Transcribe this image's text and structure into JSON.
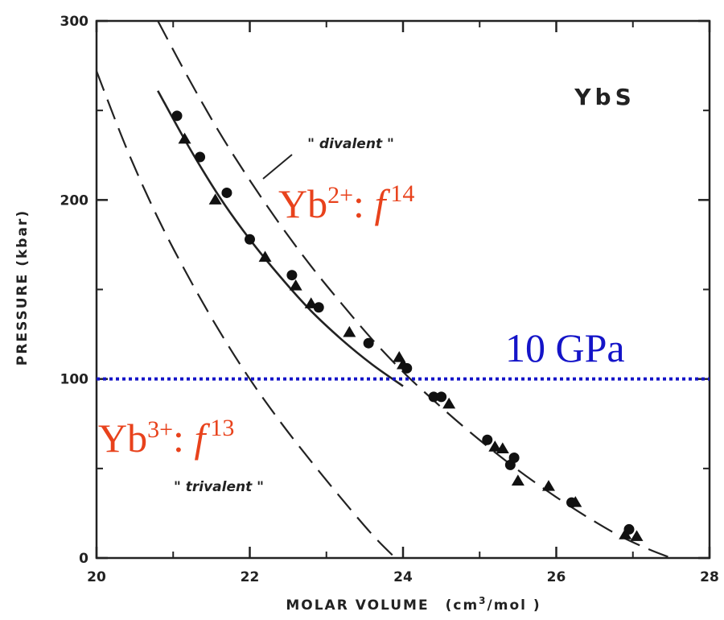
{
  "chart_data": {
    "type": "line",
    "title": "YbS",
    "xlabel_main": "MOLAR VOLUME",
    "xlabel_unit_open": "(cm",
    "xlabel_unit_sup": "3",
    "xlabel_unit_close": "/mol )",
    "ylabel": "PRESSURE  (kbar)",
    "xlim": [
      20,
      28
    ],
    "ylim": [
      0,
      300
    ],
    "x_ticks": [
      "20",
      "22",
      "24",
      "26",
      "28"
    ],
    "y_ticks": [
      "0",
      "100",
      "200",
      "300"
    ],
    "series": [
      {
        "name": "\"divalent\"",
        "style": "dashed",
        "x": [
          20.8,
          21.2,
          21.6,
          22.0,
          22.4,
          22.8,
          23.2,
          23.6,
          24.0,
          24.4,
          24.8,
          25.2,
          25.6,
          26.0,
          26.4,
          26.8,
          27.2,
          27.5
        ],
        "y": [
          300,
          268,
          238,
          211,
          186,
          163,
          142,
          122,
          104,
          88,
          73,
          59,
          46,
          34,
          23,
          13,
          5,
          0
        ]
      },
      {
        "name": "fit",
        "style": "solid",
        "x": [
          20.8,
          21.2,
          21.6,
          22.0,
          22.4,
          22.8,
          23.2,
          23.6,
          24.0
        ],
        "y": [
          261,
          230,
          202,
          178,
          157,
          138,
          122,
          108,
          96
        ]
      },
      {
        "name": "\"trivalent\"",
        "style": "dashed",
        "x": [
          20.0,
          20.4,
          20.8,
          21.2,
          21.6,
          22.0,
          22.4,
          22.8,
          23.2,
          23.6,
          23.9
        ],
        "y": [
          272,
          228,
          190,
          157,
          127,
          100,
          76,
          54,
          33,
          13,
          0
        ]
      },
      {
        "name": "circles",
        "marker": "circle",
        "x": [
          21.05,
          21.35,
          21.7,
          22.0,
          22.55,
          22.9,
          23.55,
          24.05,
          24.4,
          24.5,
          25.1,
          25.4,
          25.45,
          26.2,
          26.95
        ],
        "y": [
          247,
          224,
          204,
          178,
          158,
          140,
          120,
          106,
          90,
          90,
          66,
          52,
          56,
          31,
          16
        ]
      },
      {
        "name": "triangles",
        "marker": "triangle",
        "x": [
          21.15,
          21.55,
          22.2,
          22.6,
          22.8,
          23.3,
          23.95,
          24.0,
          24.6,
          25.2,
          25.3,
          25.5,
          25.9,
          26.25,
          26.9,
          27.05
        ],
        "y": [
          234,
          200,
          168,
          152,
          142,
          126,
          112,
          108,
          86,
          62,
          61,
          43,
          40,
          31,
          13,
          12
        ]
      },
      {
        "name": "10 GPa",
        "style": "dotted",
        "x": [
          20,
          28
        ],
        "y": [
          100,
          100
        ]
      }
    ],
    "labels": {
      "divalent": "\" divalent \"",
      "trivalent": "\" trivalent \""
    },
    "annotations": {
      "yb2_base": "Yb",
      "yb2_sup": "2+",
      "yb2_colon": ": ",
      "yb2_f": "f",
      "yb2_exp": "14",
      "yb3_base": "Yb",
      "yb3_sup": "3+",
      "yb3_colon": ": ",
      "yb3_f": "f",
      "yb3_exp": "13",
      "gpa": "10 GPa"
    },
    "colors": {
      "axis": "#222222",
      "annotation_red": "#e8421c",
      "reference_line": "#1414c8"
    },
    "grid": false
  }
}
